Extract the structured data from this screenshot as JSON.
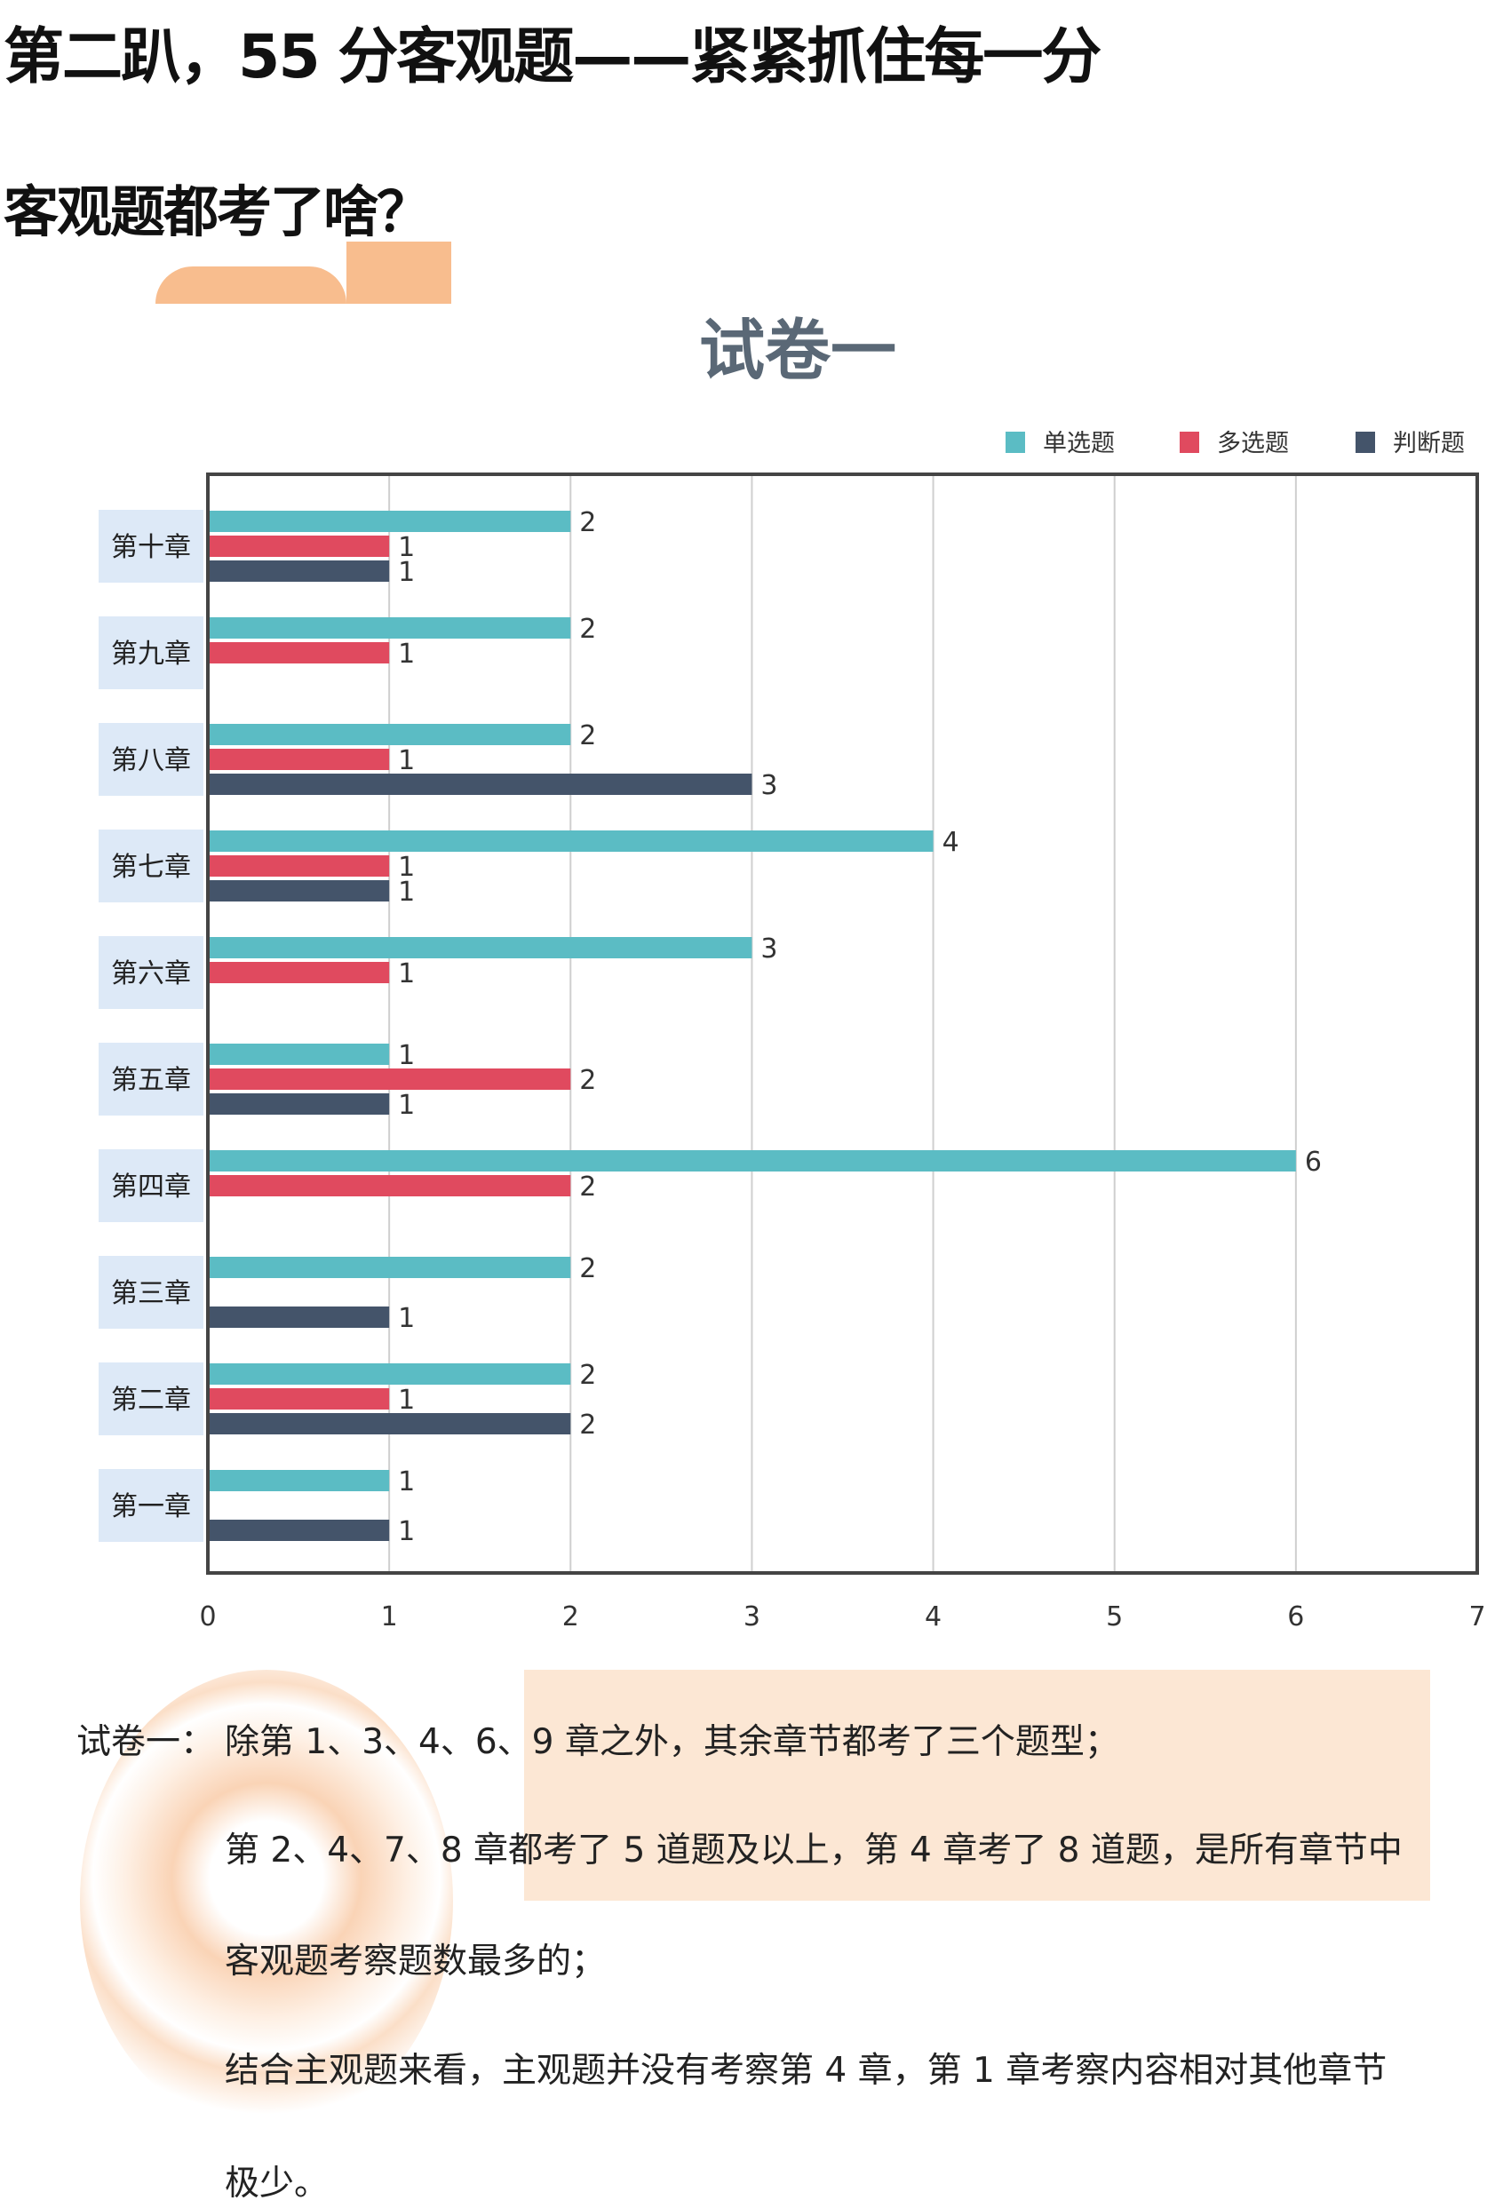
{
  "heading": "第二趴，55 分客观题——紧紧抓住每一分",
  "subheading": "客观题都考了啥？",
  "chart_data": {
    "type": "bar",
    "orientation": "horizontal",
    "title": "试卷一",
    "categories": [
      "第十章",
      "第九章",
      "第八章",
      "第七章",
      "第六章",
      "第五章",
      "第四章",
      "第三章",
      "第二章",
      "第一章"
    ],
    "series": [
      {
        "name": "单选题",
        "color": "#5bbcc4",
        "values": [
          2,
          2,
          2,
          4,
          3,
          1,
          6,
          2,
          2,
          1
        ]
      },
      {
        "name": "多选题",
        "color": "#e04a5f",
        "values": [
          1,
          1,
          1,
          1,
          1,
          2,
          2,
          null,
          1,
          null
        ]
      },
      {
        "name": "判断题",
        "color": "#44546a",
        "values": [
          1,
          null,
          3,
          1,
          null,
          1,
          null,
          1,
          2,
          1
        ]
      }
    ],
    "xlim": [
      0,
      7
    ],
    "xticks": [
      "0",
      "1",
      "2",
      "3",
      "4",
      "5",
      "6",
      "7"
    ],
    "grid": true,
    "legend": "top-right",
    "data_labels": true
  },
  "summary": {
    "label": "试卷一：",
    "lines": [
      "除第 1、3、4、6、9 章之外，其余章节都考了三个题型；",
      "第 2、4、7、8 章都考了 5 道题及以上，第 4 章考了 8 道题，是所有章节中",
      "客观题考察题数最多的；",
      "结合主观题来看，主观题并没有考察第 4 章，第 1 章考察内容相对其他章节",
      "极少。"
    ]
  }
}
